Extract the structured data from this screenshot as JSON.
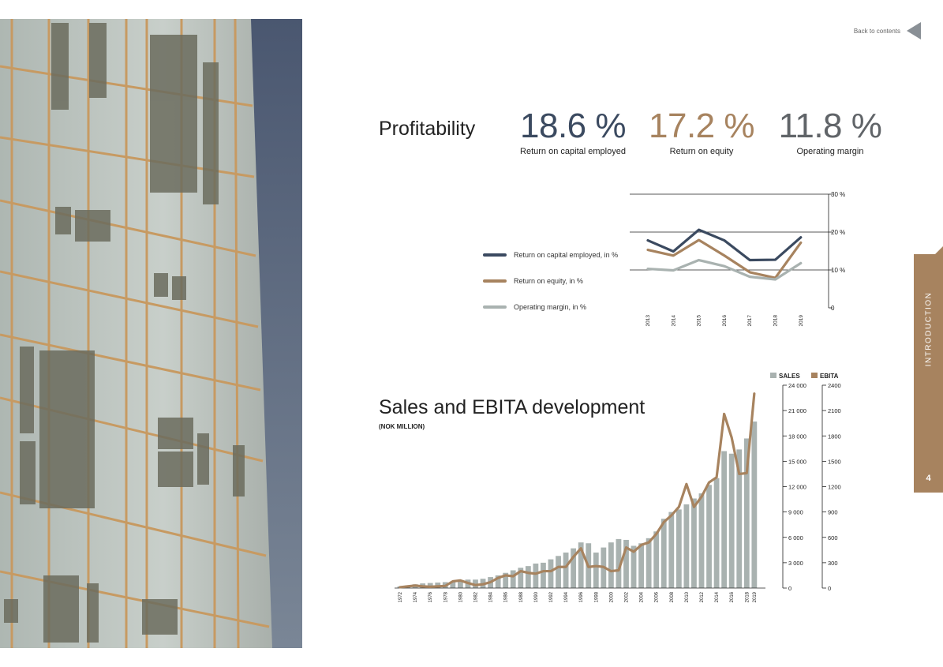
{
  "nav": {
    "back_label": "Back to contents"
  },
  "side_tab": {
    "section": "INTRODUCTION",
    "page_number": "4"
  },
  "profitability": {
    "title": "Profitability",
    "kpis": [
      {
        "value": "18.6 %",
        "label": "Return on capital employed",
        "color": "#3b4a60"
      },
      {
        "value": "17.2 %",
        "label": "Return on equity",
        "color": "#a7835f"
      },
      {
        "value": "11.8 %",
        "label": "Operating margin",
        "color": "#606468"
      }
    ],
    "legend": [
      {
        "label": "Return on capital employed, in %",
        "color": "#3b4a60"
      },
      {
        "label": "Return on equity, in %",
        "color": "#a7835f"
      },
      {
        "label": "Operating margin, in %",
        "color": "#a9b2b0"
      }
    ]
  },
  "sales": {
    "title": "Sales and EBITA development",
    "subtitle": "(NOK MILLION)",
    "legend": [
      {
        "label": "SALES",
        "color": "#a9b2b0"
      },
      {
        "label": "EBITA",
        "color": "#a7835f"
      }
    ]
  },
  "chart_data": [
    {
      "type": "line",
      "x": [
        "2013",
        "2014",
        "2015",
        "2016",
        "2017",
        "2018",
        "2019"
      ],
      "series": [
        {
          "name": "Return on capital employed, in %",
          "values": [
            17.8,
            14.9,
            20.6,
            17.8,
            12.6,
            12.7,
            18.6
          ],
          "color": "#3b4a60"
        },
        {
          "name": "Return on equity, in %",
          "values": [
            15.3,
            13.8,
            17.9,
            13.8,
            9.4,
            7.9,
            17.2
          ],
          "color": "#a7835f"
        },
        {
          "name": "Operating margin, in %",
          "values": [
            10.3,
            9.9,
            12.6,
            11.0,
            8.2,
            7.5,
            11.8
          ],
          "color": "#a9b2b0"
        }
      ],
      "ylim": [
        0,
        30
      ],
      "yticks": [
        "0",
        "10 %",
        "20 %",
        "30 %"
      ],
      "grid": true
    },
    {
      "type": "bar",
      "categories": [
        "1972",
        "1973",
        "1974",
        "1975",
        "1976",
        "1977",
        "1978",
        "1979",
        "1980",
        "1981",
        "1982",
        "1983",
        "1984",
        "1985",
        "1986",
        "1987",
        "1988",
        "1989",
        "1990",
        "1991",
        "1992",
        "1993",
        "1994",
        "1995",
        "1996",
        "1997",
        "1998",
        "1999",
        "2000",
        "2001",
        "2002",
        "2003",
        "2004",
        "2005",
        "2006",
        "2007",
        "2008",
        "2009",
        "2010",
        "2011",
        "2012",
        "2013",
        "2014",
        "2015",
        "2016",
        "2017",
        "2018",
        "2019"
      ],
      "xtick_labels": [
        "1972",
        "1974",
        "1976",
        "1978",
        "1980",
        "1982",
        "1984",
        "1986",
        "1988",
        "1990",
        "1992",
        "1994",
        "1996",
        "1998",
        "2000",
        "2002",
        "2004",
        "2006",
        "2008",
        "2010",
        "2012",
        "2014",
        "2016",
        "2018",
        "2019"
      ],
      "series": [
        {
          "name": "SALES",
          "axis": "left",
          "color": "#a9b2b0",
          "values": [
            200,
            300,
            450,
            550,
            600,
            650,
            700,
            800,
            900,
            1000,
            1000,
            1100,
            1300,
            1500,
            1800,
            2100,
            2400,
            2600,
            2900,
            3000,
            3400,
            3800,
            4200,
            4700,
            5400,
            5300,
            4200,
            4800,
            5400,
            5800,
            5700,
            5000,
            5300,
            5900,
            6700,
            8200,
            9000,
            9300,
            9900,
            10600,
            11200,
            12200,
            13000,
            16200,
            15900,
            16400,
            17700,
            19700
          ]
        },
        {
          "name": "EBITA",
          "axis": "right",
          "type": "line",
          "color": "#a7835f",
          "values": [
            10,
            20,
            30,
            20,
            15,
            20,
            25,
            80,
            90,
            60,
            35,
            45,
            70,
            120,
            150,
            140,
            200,
            180,
            170,
            200,
            200,
            250,
            250,
            370,
            470,
            250,
            260,
            250,
            200,
            210,
            480,
            430,
            510,
            540,
            640,
            780,
            860,
            960,
            1230,
            960,
            1080,
            1250,
            1310,
            2060,
            1780,
            1350,
            1360,
            2300
          ]
        }
      ],
      "ylim_left": [
        0,
        24000
      ],
      "ylim_right": [
        0,
        2400
      ],
      "yticks_left": [
        "0",
        "3 000",
        "6 000",
        "9 000",
        "12 000",
        "15 000",
        "18 000",
        "21 000",
        "24 000"
      ],
      "yticks_right": [
        "0",
        "300",
        "600",
        "900",
        "1200",
        "1500",
        "1800",
        "2100",
        "2400"
      ],
      "legend": "top-right"
    }
  ]
}
